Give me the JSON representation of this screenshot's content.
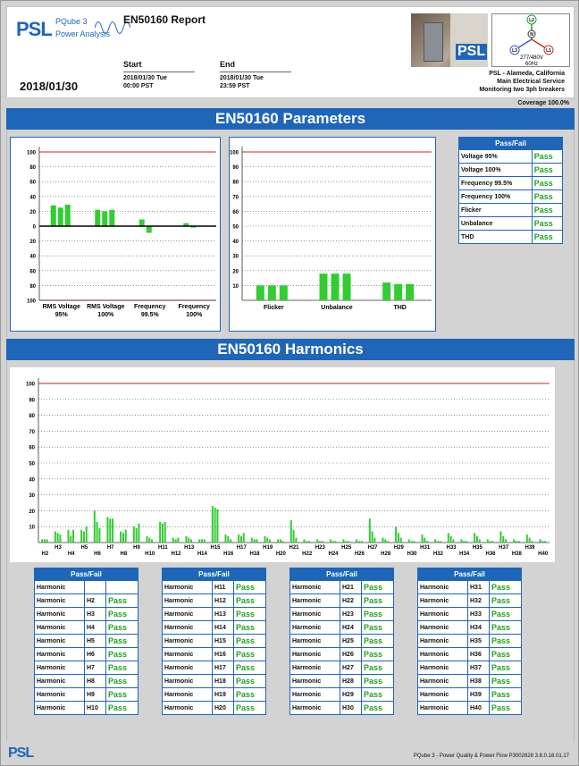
{
  "header": {
    "logo_text": "PSL",
    "product": "PQube 3",
    "product_sub": "Power Analysis",
    "report_title": "EN50160 Report",
    "start_label": "Start",
    "start_date": "2018/01/30 Tue",
    "start_time": "00:00 PST",
    "end_label": "End",
    "end_date": "2018/01/30 Tue",
    "end_time": "23:59 PST",
    "report_date": "2018/01/30",
    "photo_badge": "PSL",
    "phasor": {
      "labels": [
        "L2",
        "N",
        "L3",
        "L1"
      ],
      "voltage": "277/480V",
      "freq": "60Hz"
    },
    "location": [
      "PSL - Alameda, California",
      "Main Electrical Service",
      "Monitoring two 3ph breakers"
    ],
    "coverage": "Coverage 100.0%"
  },
  "parameters": {
    "banner": "EN50160 Parameters",
    "chart1": {
      "type": "bar",
      "ticks": [
        "100",
        "80",
        "60",
        "40",
        "20",
        "0",
        "20",
        "40",
        "60",
        "80",
        "100"
      ],
      "categories": [
        [
          "RMS Voltage",
          "95%"
        ],
        [
          "RMS Voltage",
          "100%"
        ],
        [
          "Frequency",
          "99.5%"
        ],
        [
          "Frequency",
          "100%"
        ]
      ],
      "series": [
        {
          "values": [
            28,
            22,
            9,
            4
          ]
        },
        {
          "values": [
            25,
            20,
            -9,
            -2
          ]
        },
        {
          "values": [
            29,
            22,
            0,
            0
          ]
        }
      ],
      "ylim": [
        -100,
        100
      ]
    },
    "chart2": {
      "type": "bar",
      "ticks": [
        "100",
        "90",
        "80",
        "70",
        "60",
        "50",
        "40",
        "30",
        "20",
        "10"
      ],
      "categories": [
        "Flicker",
        "Unbalance",
        "THD"
      ],
      "series": [
        {
          "values": [
            10,
            18,
            12
          ]
        },
        {
          "values": [
            10,
            18,
            11
          ]
        },
        {
          "values": [
            10,
            18,
            11
          ]
        }
      ],
      "ylim": [
        0,
        100
      ]
    },
    "passfail": {
      "title": "Pass/Fail",
      "rows": [
        {
          "label": "Voltage 95%",
          "result": "Pass"
        },
        {
          "label": "Voltage 100%",
          "result": "Pass"
        },
        {
          "label": "Frequency 99.5%",
          "result": "Pass"
        },
        {
          "label": "Frequency 100%",
          "result": "Pass"
        },
        {
          "label": "Flicker",
          "result": "Pass"
        },
        {
          "label": "Unbalance",
          "result": "Pass"
        },
        {
          "label": "THD",
          "result": "Pass"
        }
      ]
    }
  },
  "harmonics": {
    "banner": "EN50160 Harmonics",
    "chart": {
      "type": "bar",
      "ticks": [
        "100",
        "90",
        "80",
        "70",
        "60",
        "50",
        "40",
        "30",
        "20",
        "10"
      ],
      "ylim": [
        0,
        100
      ],
      "categories": [
        "H2",
        "H3",
        "H4",
        "H5",
        "H6",
        "H7",
        "H8",
        "H9",
        "H10",
        "H11",
        "H12",
        "H13",
        "H14",
        "H15",
        "H16",
        "H17",
        "H18",
        "H19",
        "H20",
        "H21",
        "H22",
        "H23",
        "H24",
        "H25",
        "H26",
        "H27",
        "H28",
        "H29",
        "H30",
        "H31",
        "H32",
        "H33",
        "H34",
        "H35",
        "H36",
        "H37",
        "H38",
        "H39",
        "H40"
      ],
      "series": [
        {
          "values": [
            2,
            7,
            8,
            8,
            20,
            16,
            7,
            10,
            4,
            13,
            3,
            4,
            2,
            23,
            5,
            5,
            3,
            4,
            2,
            14,
            2,
            2,
            2,
            2,
            2,
            15,
            3,
            10,
            2,
            5,
            2,
            6,
            2,
            6,
            2,
            7,
            2,
            5,
            2
          ]
        },
        {
          "values": [
            2,
            6,
            4,
            7,
            13,
            15,
            6,
            9,
            3,
            12,
            2,
            3,
            2,
            22,
            4,
            4,
            2,
            3,
            2,
            8,
            1,
            1,
            1,
            1,
            1,
            7,
            2,
            6,
            1,
            3,
            1,
            4,
            1,
            4,
            1,
            4,
            1,
            3,
            1
          ]
        },
        {
          "values": [
            2,
            5,
            8,
            10,
            9,
            15,
            8,
            12,
            2,
            13,
            3,
            2,
            2,
            21,
            2,
            6,
            2,
            2,
            1,
            3,
            1,
            1,
            1,
            1,
            1,
            3,
            1,
            3,
            1,
            1,
            1,
            2,
            1,
            2,
            1,
            2,
            1,
            1,
            1
          ]
        }
      ]
    },
    "passfail": {
      "title": "Pass/Fail",
      "col_label": "Harmonic",
      "tables": [
        [
          "",
          "H2",
          "H3",
          "H4",
          "H5",
          "H6",
          "H7",
          "H8",
          "H9",
          "H10"
        ],
        [
          "H11",
          "H12",
          "H13",
          "H14",
          "H15",
          "H16",
          "H17",
          "H18",
          "H19",
          "H20"
        ],
        [
          "H21",
          "H22",
          "H23",
          "H24",
          "H25",
          "H26",
          "H27",
          "H28",
          "H29",
          "H30"
        ],
        [
          "H31",
          "H32",
          "H33",
          "H34",
          "H35",
          "H36",
          "H37",
          "H38",
          "H39",
          "H40"
        ]
      ],
      "results": [
        [
          "",
          "Pass",
          "Pass",
          "Pass",
          "Pass",
          "Pass",
          "Pass",
          "Pass",
          "Pass",
          "Pass"
        ],
        [
          "Pass",
          "Pass",
          "Pass",
          "Pass",
          "Pass",
          "Pass",
          "Pass",
          "Pass",
          "Pass",
          "Pass"
        ],
        [
          "Pass",
          "Pass",
          "Pass",
          "Pass",
          "Pass",
          "Pass",
          "Pass",
          "Pass",
          "Pass",
          "Pass"
        ],
        [
          "Pass",
          "Pass",
          "Pass",
          "Pass",
          "Pass",
          "Pass",
          "Pass",
          "Pass",
          "Pass",
          "Pass"
        ]
      ]
    }
  },
  "footer": {
    "logo": "PSL",
    "text": "PQube 3 - Power Quality & Power Flow   P3002628  3.8.0.18.01.17"
  },
  "colors": {
    "brand": "#1f66b8",
    "bar": "#33cc33",
    "limit": "#cc2222",
    "pass": "#22a122"
  }
}
